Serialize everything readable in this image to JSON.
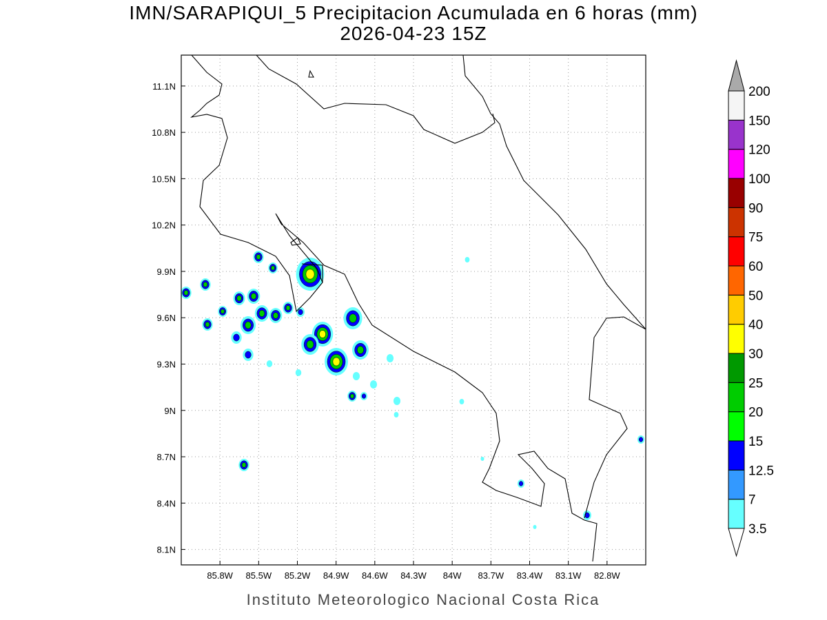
{
  "chart_data": {
    "type": "map",
    "title": "IMN/SARAPIQUI_5 Precipitacion Acumulada en 6 horas (mm)",
    "subtitle": "2026-04-23 15Z",
    "footer": "Instituto Meteorologico Nacional Costa Rica",
    "xlim": [
      -86.1,
      -82.5
    ],
    "ylim": [
      8.0,
      11.3
    ],
    "xticks": [
      {
        "value": -85.8,
        "label": "85.8W"
      },
      {
        "value": -85.5,
        "label": "85.5W"
      },
      {
        "value": -85.2,
        "label": "85.2W"
      },
      {
        "value": -84.9,
        "label": "84.9W"
      },
      {
        "value": -84.6,
        "label": "84.6W"
      },
      {
        "value": -84.3,
        "label": "84.3W"
      },
      {
        "value": -84.0,
        "label": "84W"
      },
      {
        "value": -83.7,
        "label": "83.7W"
      },
      {
        "value": -83.4,
        "label": "83.4W"
      },
      {
        "value": -83.1,
        "label": "83.1W"
      },
      {
        "value": -82.8,
        "label": "82.8W"
      }
    ],
    "yticks": [
      {
        "value": 8.1,
        "label": "8.1N"
      },
      {
        "value": 8.4,
        "label": "8.4N"
      },
      {
        "value": 8.7,
        "label": "8.7N"
      },
      {
        "value": 9.0,
        "label": "9N"
      },
      {
        "value": 9.3,
        "label": "9.3N"
      },
      {
        "value": 9.6,
        "label": "9.6N"
      },
      {
        "value": 9.9,
        "label": "9.9N"
      },
      {
        "value": 10.2,
        "label": "10.2N"
      },
      {
        "value": 10.5,
        "label": "10.5N"
      },
      {
        "value": 10.8,
        "label": "10.8N"
      },
      {
        "value": 11.1,
        "label": "11.1N"
      }
    ],
    "grid": true,
    "levels": [
      3.5,
      7,
      12.5,
      15,
      20,
      25,
      30,
      40,
      50,
      60,
      75,
      90,
      100,
      120,
      150,
      200
    ],
    "colors": [
      "#ffffff",
      "#66ffff",
      "#3399ff",
      "#0000ff",
      "#00ff00",
      "#00cc00",
      "#009900",
      "#ffff00",
      "#ffcc00",
      "#ff6600",
      "#ff0000",
      "#cc3300",
      "#990000",
      "#ff00ff",
      "#9933cc",
      "#f5f5f5",
      "#aaaaaa"
    ]
  }
}
